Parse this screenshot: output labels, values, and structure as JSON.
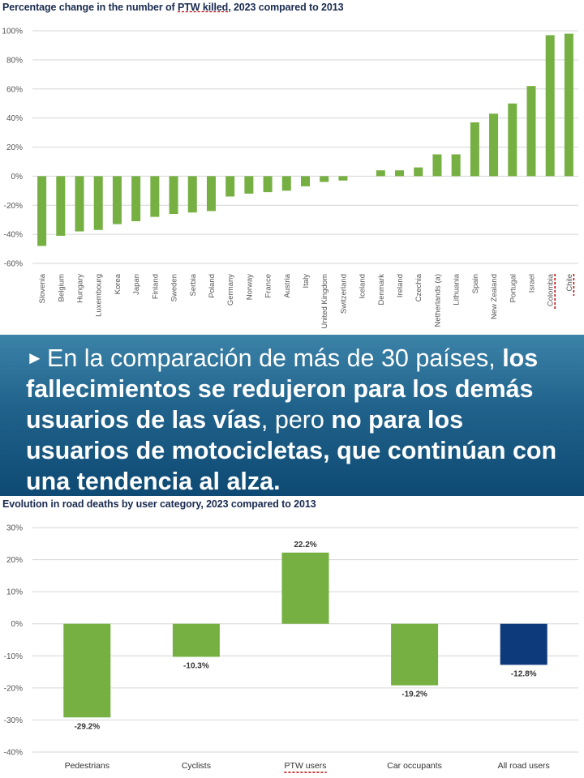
{
  "banner": {
    "bullet_icon": "right-pointer-arrow-icon",
    "parts": [
      {
        "text": "En la comparación de más de 30 países, ",
        "bold": false
      },
      {
        "text": "los fallecimientos se redujeron para los demás usuarios de las vías",
        "bold": true
      },
      {
        "text": ", pero ",
        "bold": false
      },
      {
        "text": "no para los usuarios de motocicletas, que continúan con una tendencia al alza.",
        "bold": true
      }
    ]
  },
  "colors": {
    "green": "#76b043",
    "navy": "#0d3a7a",
    "axis_text": "#555555",
    "grid": "#d6d6d6",
    "title": "#1a2b50",
    "banner_top": "#3c83a8",
    "banner_bottom": "#0e4a73",
    "underline": "#c00000"
  },
  "chart_data": [
    {
      "type": "bar",
      "title": "Percentage change in the number of PTW killed, 2023 compared to 2013",
      "title_parts": [
        "Percentage change in the number of ",
        "PTW killed",
        ", 2023 compared to 2013"
      ],
      "xlabel": "",
      "ylabel": "",
      "ylim": [
        -60,
        100
      ],
      "yticks": [
        100,
        80,
        60,
        40,
        20,
        0,
        -20,
        -40,
        -60
      ],
      "ytick_labels": [
        "100%",
        "80%",
        "60%",
        "40%",
        "20%",
        "0%",
        "-20%",
        "-40%",
        "-60%"
      ],
      "grid": true,
      "categories": [
        "Slovenia",
        "Belgium",
        "Hungary",
        "Luxembourg",
        "Korea",
        "Japan",
        "Finland",
        "Sweden",
        "Serbia",
        "Poland",
        "Germany",
        "Norway",
        "France",
        "Austria",
        "Italy",
        "United Kingdom",
        "Switzerland",
        "Iceland",
        "Denmark",
        "Ireland",
        "Czechia",
        "Netherlands (a)",
        "Lithuania",
        "Spain",
        "New Zealand",
        "Portugal",
        "Israel",
        "Colombia",
        "Chile"
      ],
      "values": [
        -48,
        -41,
        -38,
        -37,
        -33,
        -31,
        -28,
        -26,
        -25,
        -24,
        -14,
        -12,
        -11,
        -10,
        -7,
        -4,
        -3,
        0,
        4,
        4,
        6,
        15,
        15,
        37,
        43,
        50,
        62,
        97,
        98
      ],
      "underlined_categories": [
        "Colombia",
        "Chile"
      ]
    },
    {
      "type": "bar",
      "title": "Evolution in road deaths by user category, 2023 compared to 2013",
      "xlabel": "",
      "ylabel": "",
      "ylim": [
        -40,
        30
      ],
      "yticks": [
        30,
        20,
        10,
        0,
        -10,
        -20,
        -30,
        -40
      ],
      "ytick_labels": [
        "30%",
        "20%",
        "10%",
        "0%",
        "-10%",
        "-20%",
        "-30%",
        "-40%"
      ],
      "grid": true,
      "categories": [
        "Pedestrians",
        "Cyclists",
        "PTW users",
        "Car occupants",
        "All road users"
      ],
      "values": [
        -29.2,
        -10.3,
        22.2,
        -19.2,
        -12.8
      ],
      "data_labels": [
        "-29.2%",
        "-10.3%",
        "22.2%",
        "-19.2%",
        "-12.8%"
      ],
      "bar_colors": [
        "#76b043",
        "#76b043",
        "#76b043",
        "#76b043",
        "#0d3a7a"
      ],
      "underlined_categories": [
        "PTW users"
      ]
    }
  ]
}
